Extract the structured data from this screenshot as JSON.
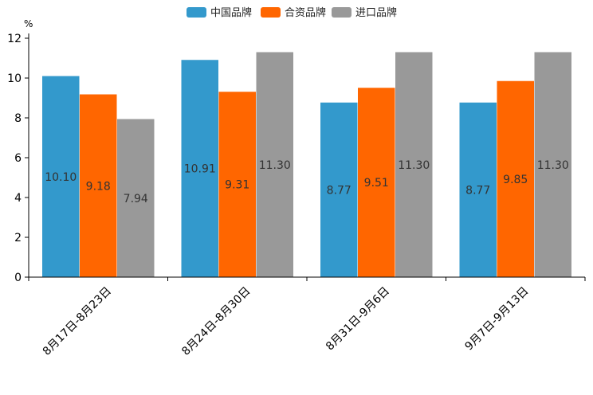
{
  "chart_data": {
    "type": "bar",
    "title": "",
    "xlabel": "",
    "ylabel": "%",
    "ylim": [
      0,
      12
    ],
    "yticks": [
      0,
      2,
      4,
      6,
      8,
      10,
      12
    ],
    "grid": false,
    "legend_position": "top-center",
    "categories": [
      "8月17日-8月23日",
      "8月24日-8月30日",
      "8月31日-9月6日",
      "9月7日-9月13日"
    ],
    "series": [
      {
        "name": "中国品牌",
        "color": "#3399cc",
        "values": [
          10.1,
          10.91,
          8.77,
          8.77
        ],
        "labels": [
          "10.10",
          "10.91",
          "8.77",
          "8.77"
        ]
      },
      {
        "name": "合资品牌",
        "color": "#ff6600",
        "values": [
          9.18,
          9.31,
          9.51,
          9.85
        ],
        "labels": [
          "9.18",
          "9.31",
          "9.51",
          "9.85"
        ]
      },
      {
        "name": "进口品牌",
        "color": "#999999",
        "values": [
          7.94,
          11.3,
          11.3,
          11.3
        ],
        "labels": [
          "7.94",
          "11.30",
          "11.30",
          "11.30"
        ]
      }
    ]
  }
}
